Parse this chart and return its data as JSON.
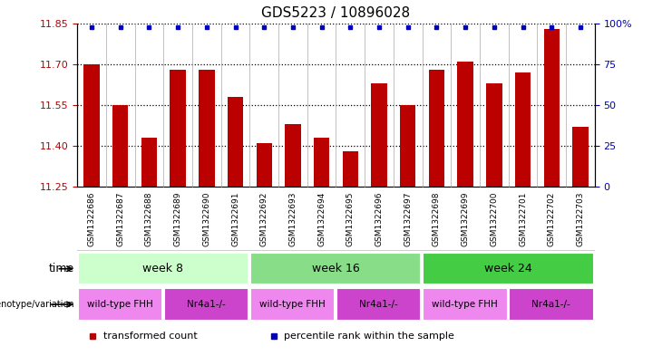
{
  "title": "GDS5223 / 10896028",
  "samples": [
    "GSM1322686",
    "GSM1322687",
    "GSM1322688",
    "GSM1322689",
    "GSM1322690",
    "GSM1322691",
    "GSM1322692",
    "GSM1322693",
    "GSM1322694",
    "GSM1322695",
    "GSM1322696",
    "GSM1322697",
    "GSM1322698",
    "GSM1322699",
    "GSM1322700",
    "GSM1322701",
    "GSM1322702",
    "GSM1322703"
  ],
  "bar_values": [
    11.7,
    11.55,
    11.43,
    11.68,
    11.68,
    11.58,
    11.41,
    11.48,
    11.43,
    11.38,
    11.63,
    11.55,
    11.68,
    11.71,
    11.63,
    11.67,
    11.83,
    11.47
  ],
  "percentile_values": [
    100,
    100,
    100,
    100,
    100,
    100,
    100,
    100,
    100,
    100,
    100,
    100,
    100,
    100,
    100,
    100,
    100,
    100
  ],
  "ylim": [
    11.25,
    11.85
  ],
  "yticks": [
    11.25,
    11.4,
    11.55,
    11.7,
    11.85
  ],
  "right_yticks_vals": [
    0,
    25,
    50,
    75,
    100
  ],
  "right_ytick_labels": [
    "0",
    "25",
    "50",
    "75",
    "100%"
  ],
  "bar_color": "#bb0000",
  "percentile_color": "#0000bb",
  "bar_width": 0.55,
  "time_groups": [
    {
      "label": "week 8",
      "start": 0,
      "end": 5,
      "color": "#ccffcc"
    },
    {
      "label": "week 16",
      "start": 6,
      "end": 11,
      "color": "#88dd88"
    },
    {
      "label": "week 24",
      "start": 12,
      "end": 17,
      "color": "#44cc44"
    }
  ],
  "genotype_groups": [
    {
      "label": "wild-type FHH",
      "start": 0,
      "end": 2,
      "color": "#ee88ee"
    },
    {
      "label": "Nr4a1-/-",
      "start": 3,
      "end": 5,
      "color": "#cc44cc"
    },
    {
      "label": "wild-type FHH",
      "start": 6,
      "end": 8,
      "color": "#ee88ee"
    },
    {
      "label": "Nr4a1-/-",
      "start": 9,
      "end": 11,
      "color": "#cc44cc"
    },
    {
      "label": "wild-type FHH",
      "start": 12,
      "end": 14,
      "color": "#ee88ee"
    },
    {
      "label": "Nr4a1-/-",
      "start": 15,
      "end": 17,
      "color": "#cc44cc"
    }
  ],
  "legend_items": [
    {
      "label": "transformed count",
      "color": "#bb0000"
    },
    {
      "label": "percentile rank within the sample",
      "color": "#0000bb"
    }
  ],
  "xlabel_bg": "#cccccc",
  "title_fontsize": 11,
  "tick_fontsize": 8,
  "label_fontsize": 9,
  "sample_fontsize": 6.5
}
